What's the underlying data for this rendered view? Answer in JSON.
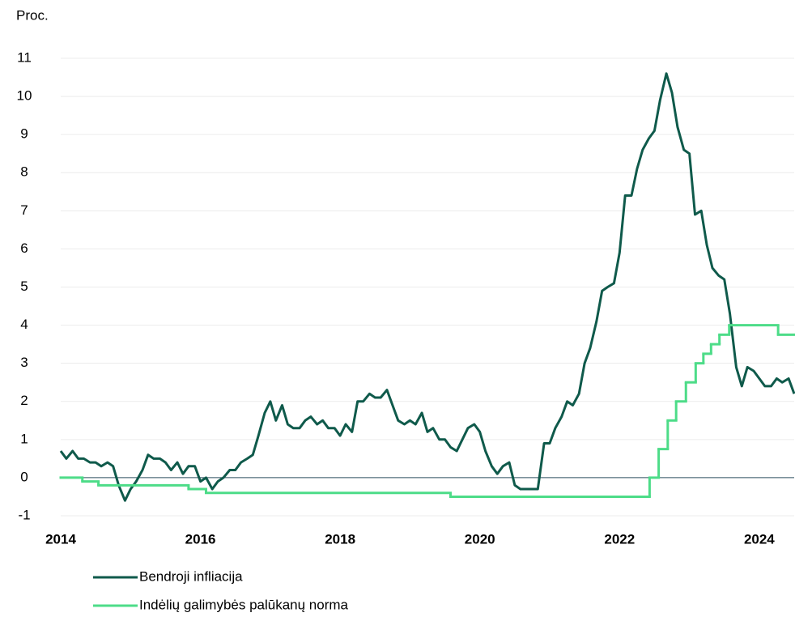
{
  "chart_data": {
    "type": "line",
    "ylabel": "Proc.",
    "xlim": [
      2014,
      2024.5
    ],
    "xticks": [
      2014,
      2016,
      2018,
      2020,
      2022,
      2024
    ],
    "ylim": [
      -1,
      11
    ],
    "yticks": [
      -1,
      0,
      1,
      2,
      3,
      4,
      5,
      6,
      7,
      8,
      9,
      10,
      11
    ],
    "grid": true,
    "legend": "bottom",
    "series": [
      {
        "name": "Bendroji infliacija",
        "color": "#0f5a4b",
        "x": [
          2014.0,
          2014.08,
          2014.17,
          2014.25,
          2014.33,
          2014.42,
          2014.5,
          2014.58,
          2014.67,
          2014.75,
          2014.83,
          2014.92,
          2015.0,
          2015.08,
          2015.17,
          2015.25,
          2015.33,
          2015.42,
          2015.5,
          2015.58,
          2015.67,
          2015.75,
          2015.83,
          2015.92,
          2016.0,
          2016.08,
          2016.17,
          2016.25,
          2016.33,
          2016.42,
          2016.5,
          2016.58,
          2016.67,
          2016.75,
          2016.83,
          2016.92,
          2017.0,
          2017.08,
          2017.17,
          2017.25,
          2017.33,
          2017.42,
          2017.5,
          2017.58,
          2017.67,
          2017.75,
          2017.83,
          2017.92,
          2018.0,
          2018.08,
          2018.17,
          2018.25,
          2018.33,
          2018.42,
          2018.5,
          2018.58,
          2018.67,
          2018.75,
          2018.83,
          2018.92,
          2019.0,
          2019.08,
          2019.17,
          2019.25,
          2019.33,
          2019.42,
          2019.5,
          2019.58,
          2019.67,
          2019.75,
          2019.83,
          2019.92,
          2020.0,
          2020.08,
          2020.17,
          2020.25,
          2020.33,
          2020.42,
          2020.5,
          2020.58,
          2020.67,
          2020.75,
          2020.83,
          2020.92,
          2021.0,
          2021.08,
          2021.17,
          2021.25,
          2021.33,
          2021.42,
          2021.5,
          2021.58,
          2021.67,
          2021.75,
          2021.83,
          2021.92,
          2022.0,
          2022.08,
          2022.17,
          2022.25,
          2022.33,
          2022.42,
          2022.5,
          2022.58,
          2022.67,
          2022.75,
          2022.83,
          2022.92,
          2023.0,
          2023.08,
          2023.17,
          2023.25,
          2023.33,
          2023.42,
          2023.5,
          2023.58,
          2023.67,
          2023.75,
          2023.83,
          2023.92,
          2024.0,
          2024.08,
          2024.17,
          2024.25,
          2024.33,
          2024.42,
          2024.5
        ],
        "values": [
          0.7,
          0.5,
          0.7,
          0.5,
          0.5,
          0.4,
          0.4,
          0.3,
          0.4,
          0.3,
          -0.2,
          -0.6,
          -0.3,
          -0.1,
          0.2,
          0.6,
          0.5,
          0.5,
          0.4,
          0.2,
          0.4,
          0.1,
          0.3,
          0.3,
          -0.1,
          0.0,
          -0.3,
          -0.1,
          0.0,
          0.2,
          0.2,
          0.4,
          0.5,
          0.6,
          1.1,
          1.7,
          2.0,
          1.5,
          1.9,
          1.4,
          1.3,
          1.3,
          1.5,
          1.6,
          1.4,
          1.5,
          1.3,
          1.3,
          1.1,
          1.4,
          1.2,
          2.0,
          2.0,
          2.2,
          2.1,
          2.1,
          2.3,
          1.9,
          1.5,
          1.4,
          1.5,
          1.4,
          1.7,
          1.2,
          1.3,
          1.0,
          1.0,
          0.8,
          0.7,
          1.0,
          1.3,
          1.4,
          1.2,
          0.7,
          0.3,
          0.1,
          0.3,
          0.4,
          -0.2,
          -0.3,
          -0.3,
          -0.3,
          -0.3,
          0.9,
          0.9,
          1.3,
          1.6,
          2.0,
          1.9,
          2.2,
          3.0,
          3.4,
          4.1,
          4.9,
          5.0,
          5.1,
          5.9,
          7.4,
          7.4,
          8.1,
          8.6,
          8.9,
          9.1,
          9.9,
          10.6,
          10.1,
          9.2,
          8.6,
          8.5,
          6.9,
          7.0,
          6.1,
          5.5,
          5.3,
          5.2,
          4.3,
          2.9,
          2.4,
          2.9,
          2.8,
          2.6,
          2.4,
          2.4,
          2.6,
          2.5,
          2.6,
          2.2
        ]
      },
      {
        "name": "Indėlių galimybės palūkanų norma",
        "color": "#4ddc88",
        "step": "post",
        "x": [
          2014,
          2014.31,
          2014.54,
          2015.83,
          2016.08,
          2019.58,
          2022.43,
          2022.56,
          2022.69,
          2022.81,
          2022.95,
          2023.09,
          2023.2,
          2023.31,
          2023.43,
          2023.57,
          2024.27
        ],
        "values": [
          0,
          -0.1,
          -0.2,
          -0.3,
          -0.4,
          -0.5,
          0,
          0.75,
          1.5,
          2,
          2.5,
          3,
          3.25,
          3.5,
          3.75,
          4,
          3.75
        ]
      }
    ]
  }
}
